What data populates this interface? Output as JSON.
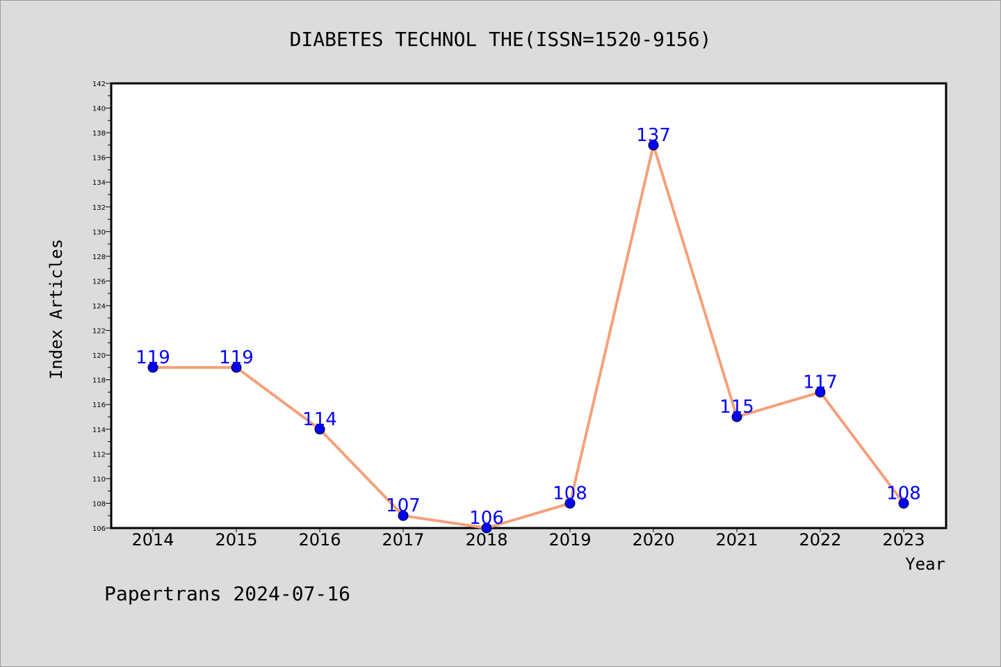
{
  "chart_data": {
    "type": "line",
    "title": "DIABETES TECHNOL THE(ISSN=1520-9156)",
    "xlabel": "Year",
    "ylabel": "Index Articles",
    "categories": [
      "2014",
      "2015",
      "2016",
      "2017",
      "2018",
      "2019",
      "2020",
      "2021",
      "2022",
      "2023"
    ],
    "series": [
      {
        "values": [
          119,
          119,
          114,
          107,
          106,
          108,
          137,
          115,
          117,
          108
        ]
      }
    ],
    "ylim": [
      106,
      142
    ],
    "yticks": [
      106,
      108,
      110,
      112,
      114,
      116,
      118,
      120,
      122,
      124,
      126,
      128,
      130,
      132,
      134,
      136,
      138,
      140,
      142
    ],
    "grid": false,
    "colors": {
      "line": "#f4a07a",
      "marker": "#0000ff",
      "data_label": "#0000ff",
      "background": "#dcdcdc",
      "plot_area": "#ffffff"
    }
  },
  "footer": {
    "watermark": "Papertrans 2024-07-16"
  }
}
